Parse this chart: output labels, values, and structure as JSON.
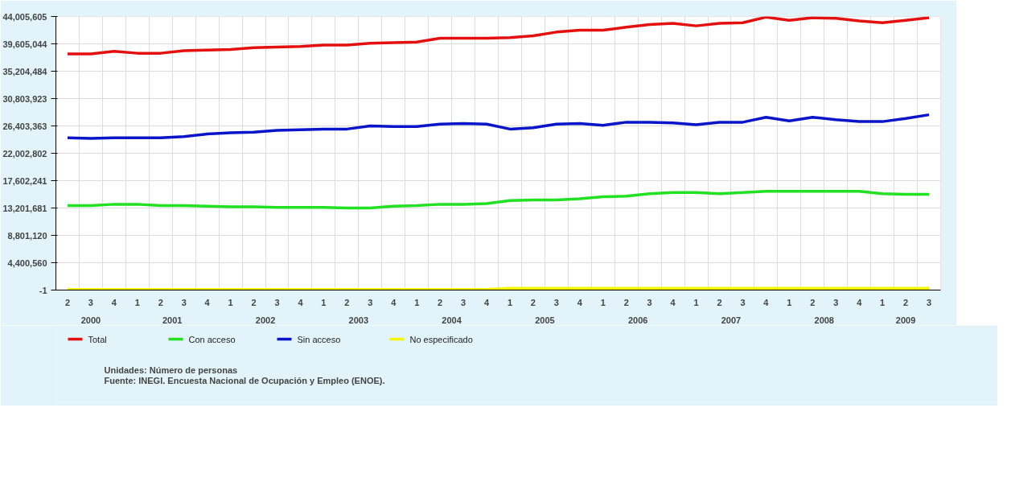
{
  "chart_data": {
    "type": "line",
    "categories": [
      "2",
      "3",
      "4",
      "1",
      "2",
      "3",
      "4",
      "1",
      "2",
      "3",
      "4",
      "1",
      "2",
      "3",
      "4",
      "1",
      "2",
      "3",
      "4",
      "1",
      "2",
      "3",
      "4",
      "1",
      "2",
      "3",
      "4",
      "1",
      "2",
      "3",
      "4",
      "1",
      "2",
      "3",
      "4",
      "1",
      "2",
      "3"
    ],
    "series": [
      {
        "name": "Total",
        "color": "#e41010",
        "values": [
          38000000,
          38000000,
          38400000,
          38100000,
          38100000,
          38500000,
          38600000,
          38700000,
          39000000,
          39100000,
          39200000,
          39400000,
          39400000,
          39700000,
          39800000,
          39900000,
          40500000,
          40500000,
          40500000,
          40600000,
          40900000,
          41500000,
          41800000,
          41800000,
          42300000,
          42700000,
          42900000,
          42500000,
          42900000,
          43000000,
          43900000,
          43400000,
          43800000,
          43700000,
          43300000,
          43000000,
          43400000,
          43800000
        ]
      },
      {
        "name": "Con acceso",
        "color": "#22e022",
        "values": [
          13600000,
          13600000,
          13800000,
          13800000,
          13600000,
          13600000,
          13500000,
          13400000,
          13400000,
          13300000,
          13300000,
          13300000,
          13200000,
          13200000,
          13500000,
          13600000,
          13800000,
          13800000,
          13900000,
          14400000,
          14500000,
          14500000,
          14700000,
          15000000,
          15100000,
          15500000,
          15700000,
          15700000,
          15500000,
          15700000,
          15900000,
          15900000,
          15900000,
          15900000,
          15900000,
          15500000,
          15400000,
          15400000
        ]
      },
      {
        "name": "Sin acceso",
        "color": "#0a14c8",
        "values": [
          24500000,
          24400000,
          24500000,
          24500000,
          24500000,
          24700000,
          25100000,
          25300000,
          25400000,
          25700000,
          25800000,
          25900000,
          25900000,
          26400000,
          26300000,
          26300000,
          26700000,
          26800000,
          26700000,
          25900000,
          26100000,
          26700000,
          26800000,
          26500000,
          27000000,
          27000000,
          26900000,
          26600000,
          27000000,
          27000000,
          27800000,
          27200000,
          27800000,
          27400000,
          27100000,
          27100000,
          27600000,
          28200000
        ]
      },
      {
        "name": "No especificado",
        "color": "#f5f500",
        "values": [
          100000,
          100000,
          100000,
          100000,
          100000,
          100000,
          100000,
          100000,
          100000,
          100000,
          100000,
          100000,
          100000,
          100000,
          100000,
          100000,
          100000,
          100000,
          100000,
          300000,
          300000,
          300000,
          300000,
          300000,
          300000,
          300000,
          300000,
          300000,
          300000,
          300000,
          300000,
          300000,
          300000,
          300000,
          300000,
          300000,
          300000,
          300000
        ]
      }
    ],
    "ylim": [
      -1,
      44005605
    ],
    "yticks": [
      -1,
      {
        "value": 4400560,
        "label": "4,400,560"
      },
      {
        "value": 8801120,
        "label": "8,801,120"
      },
      {
        "value": 13201681,
        "label": "13,201,681"
      },
      {
        "value": 17602241,
        "label": "17,602,241"
      },
      {
        "value": 22002802,
        "label": "22,002,802"
      },
      {
        "value": 26403363,
        "label": "26,403,363"
      },
      {
        "value": 30803923,
        "label": "30,803,923"
      },
      {
        "value": 35204484,
        "label": "35,204,484"
      },
      {
        "value": 39605044,
        "label": "39,605,044"
      },
      {
        "value": 44005605,
        "label": "44,005,605"
      }
    ],
    "grid": true,
    "legend": "bottom",
    "marker": "none",
    "line_style": "solid",
    "annotations": [
      "2000",
      "2001",
      "2002",
      "2003",
      "2004",
      "2005",
      "2006",
      "2007",
      "2008",
      "2009",
      "Unidades: Número de personas",
      "Fuente: INEGI. Encuesta Nacional de Ocupación y Empleo (ENOE)."
    ]
  }
}
